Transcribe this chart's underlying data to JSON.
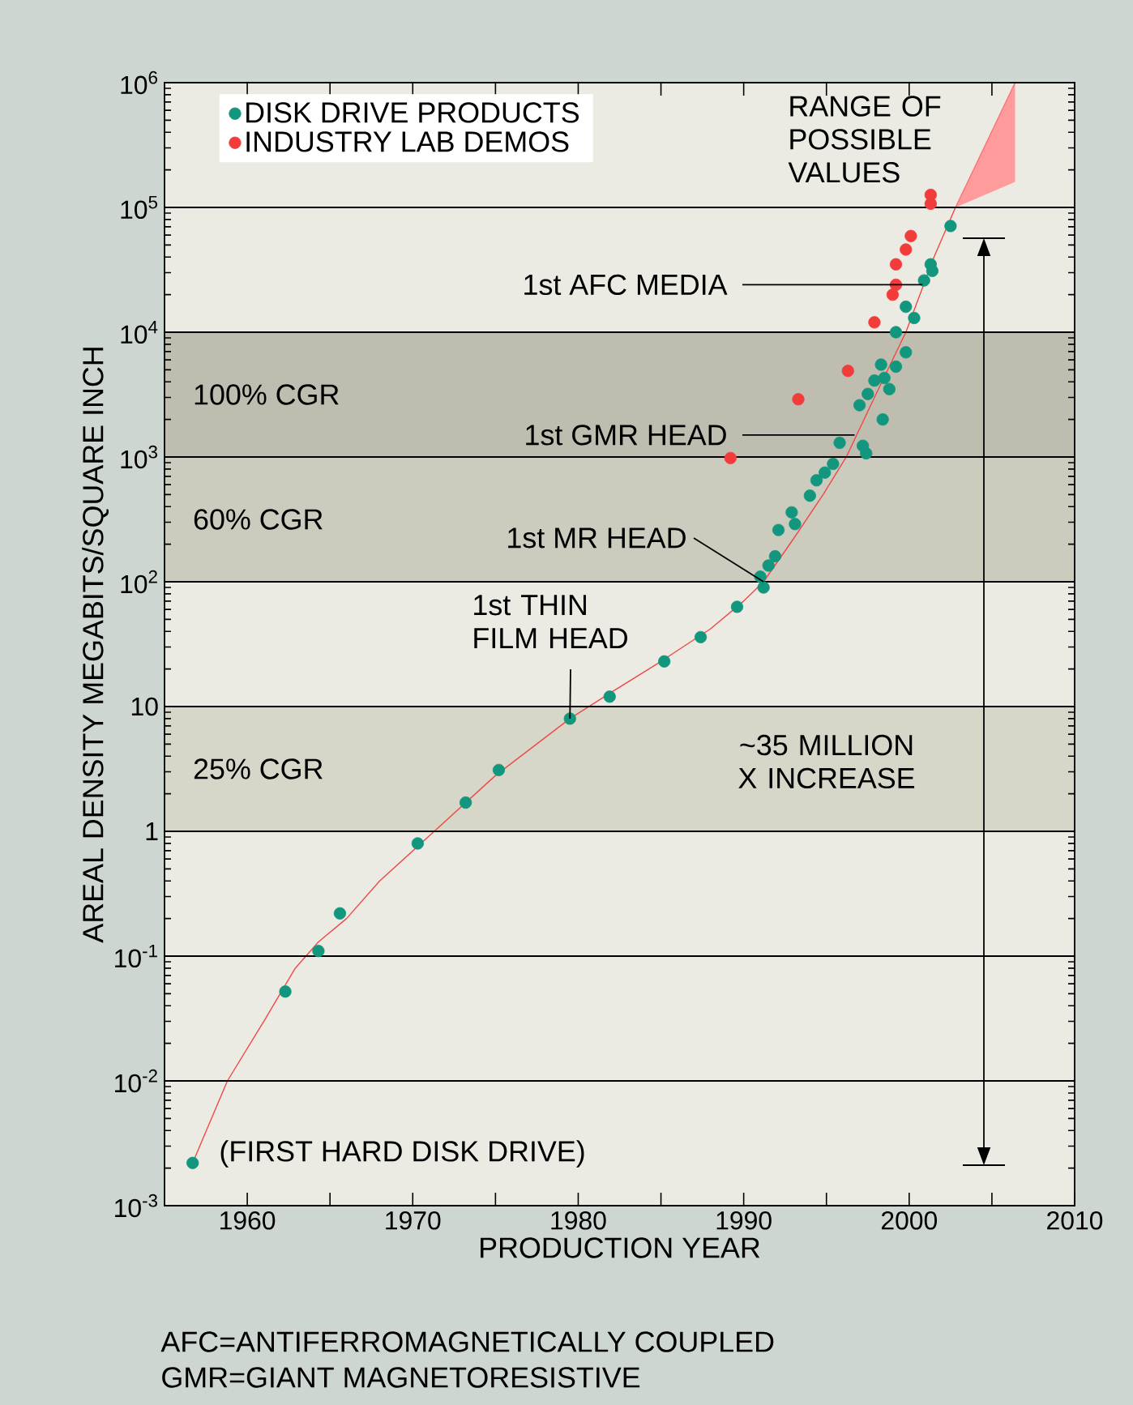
{
  "chart_data": {
    "type": "scatter",
    "xlabel": "PRODUCTION YEAR",
    "ylabel": "AREAL DENSITY MEGABITS/SQUARE INCH",
    "xlim": [
      1955,
      2010
    ],
    "ylim": [
      0.001,
      1000000
    ],
    "log": "y",
    "grid": "y",
    "legend": "top left",
    "marker": "circle",
    "xticks": [
      1960,
      {
        "value": 1965,
        "label": null
      },
      1970,
      {
        "value": 1975,
        "label": null
      },
      1980,
      {
        "value": 1985,
        "label": null
      },
      1990,
      {
        "value": 1995,
        "label": null
      },
      2000,
      {
        "value": 2005,
        "label": null
      },
      2010
    ],
    "yticks": [
      {
        "value": 0.001,
        "label": "10$^{-3}$"
      },
      {
        "value": 0.01,
        "label": "10$^{-2}$"
      },
      {
        "value": 0.1,
        "label": "10$^{-1}$"
      },
      1,
      10,
      {
        "value": 100,
        "label": "10$^{2}$"
      },
      {
        "value": 1000,
        "label": "10$^{3}$"
      },
      {
        "value": 10000,
        "label": "10$^{4}$"
      },
      {
        "value": 100000,
        "label": "10$^{5}$"
      },
      {
        "value": 1000000,
        "label": "10$^{6}$"
      }
    ],
    "bands": [
      {
        "axis": "y",
        "from": 1000,
        "to": 10000,
        "label": "100% CGR",
        "color": "#bebdb0"
      },
      {
        "axis": "y",
        "from": 100,
        "to": 1000,
        "label": "60% CGR",
        "color": "#cbcbbe"
      },
      {
        "axis": "y",
        "from": 1,
        "to": 10,
        "label": "25% CGR",
        "color": "#d6d6c9"
      }
    ],
    "series": [
      {
        "name": "DISK DRIVE PRODUCTS",
        "color": "#12977e",
        "x": [
          1956.7,
          1962.3,
          1964.3,
          1965.6,
          1970.3,
          1973.2,
          1975.2,
          1979.5,
          1981.9,
          1985.2,
          1987.4,
          1989.6,
          1991.2,
          1991.0,
          1991.5,
          1991.9,
          1992.1,
          1992.9,
          1993.1,
          1994.0,
          1994.4,
          1994.9,
          1995.4,
          1995.8,
          1997.2,
          1997.4,
          1997.0,
          1997.5,
          1997.9,
          1998.5,
          1998.4,
          1998.3,
          1998.8,
          1999.2,
          1999.8,
          1999.2,
          1999.8,
          2000.3,
          2000.9,
          2001.4,
          2001.3,
          2002.5
        ],
        "values": [
          0.0022,
          0.052,
          0.11,
          0.22,
          0.8,
          1.7,
          3.1,
          8,
          12,
          23,
          36,
          63,
          90,
          110,
          135,
          160,
          260,
          360,
          290,
          490,
          650,
          750,
          880,
          1300,
          1230,
          1070,
          2600,
          3200,
          4100,
          4300,
          2000,
          5500,
          3500,
          5300,
          6900,
          10000,
          16000,
          13000,
          26000,
          31000,
          35000,
          71000
        ]
      },
      {
        "name": "INDUSTRY LAB DEMOS",
        "color": "#f23c3c",
        "x": [
          1989.2,
          1993.3,
          1996.3,
          1997.9,
          1999.0,
          1999.2,
          1999.2,
          1999.8,
          2000.1,
          2001.3,
          2001.3
        ],
        "values": [
          980,
          2900,
          4900,
          12000,
          20000,
          24000,
          35000,
          46000,
          59000,
          126000,
          107000
        ]
      },
      {
        "type": "line",
        "color": "#f04848",
        "marker": "none",
        "x": [
          1956.7,
          1958.8,
          1961,
          1962.9,
          1964.3,
          1966,
          1968,
          1971.3,
          1975,
          1979.5,
          1982,
          1985,
          1988,
          1990,
          1991.2,
          1993,
          1994.8,
          1996.2,
          1998,
          1999.8,
          2001.5,
          2002.8
        ],
        "values": [
          0.0022,
          0.01,
          0.03,
          0.08,
          0.13,
          0.2,
          0.4,
          1,
          2.8,
          8,
          13,
          23,
          42,
          70,
          100,
          220,
          500,
          1000,
          3200,
          10000,
          40000,
          100000
        ]
      },
      {
        "type": "line",
        "color": "#ff7070",
        "marker": "none",
        "x": [
          2002.8,
          2006.4
        ],
        "values": [
          100000,
          1000000
        ],
        "lower": [
          100000,
          160000
        ],
        "upper": [
          100000,
          1000000
        ]
      }
    ],
    "annotations": [
      "RANGE OF POSSIBLE VALUES",
      {
        "text": "1st AFC MEDIA",
        "x": 2000.8,
        "y": 24000
      },
      {
        "text": "1st GMR HEAD",
        "x": 1996.7,
        "y": 1500
      },
      {
        "text": "1st MR HEAD",
        "x": 1991.2,
        "y": 100
      },
      {
        "text": "1st THIN FILM HEAD",
        "x": 1979.5,
        "y": 8
      },
      "~35 MILLION X INCREASE",
      "(FIRST HARD DISK DRIVE)",
      "AFC=ANTIFERROMAGNETICALLY COUPLED",
      "GMR=GIANT MAGNETORESISTIVE"
    ]
  }
}
